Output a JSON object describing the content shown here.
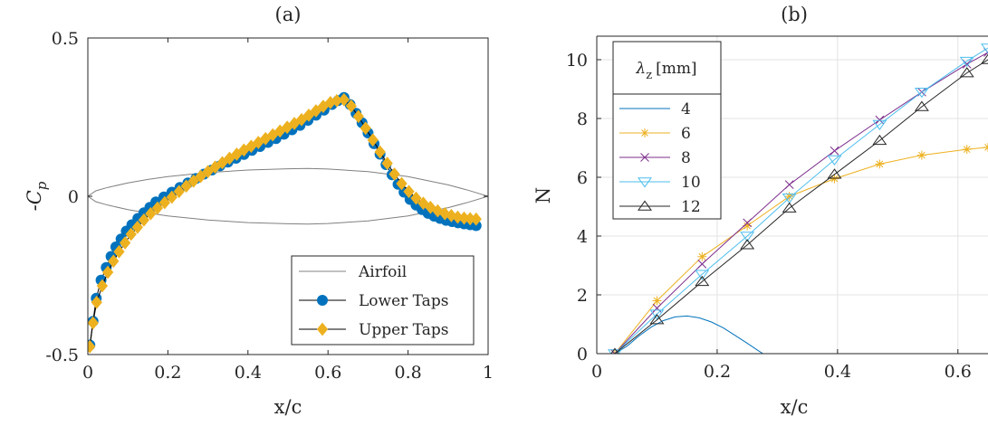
{
  "chart_data": [
    {
      "id": "a",
      "type": "line",
      "title": "(a)",
      "xlabel": "x/c",
      "ylabel": "-C",
      "ylabel_sub": "p",
      "xlim": [
        0,
        1
      ],
      "ylim": [
        -0.5,
        0.5
      ],
      "xticks": [
        "0",
        "0.2",
        "0.4",
        "0.6",
        "0.8",
        "1"
      ],
      "yticks": [
        "-0.5",
        "0",
        "0.5"
      ],
      "grid": false,
      "legend_position": "bottom-right",
      "series": [
        {
          "name": "Airfoil",
          "color": "#808080",
          "marker": "none",
          "x": [
            0.0,
            0.02,
            0.05,
            0.1,
            0.15,
            0.2,
            0.3,
            0.4,
            0.5,
            0.55,
            0.6,
            0.7,
            0.8,
            0.9,
            0.95,
            1.0
          ],
          "y": [
            0.0,
            0.017,
            0.028,
            0.042,
            0.053,
            0.062,
            0.075,
            0.083,
            0.087,
            0.088,
            0.086,
            0.078,
            0.062,
            0.036,
            0.019,
            0.0
          ]
        },
        {
          "name": "",
          "color": "#808080",
          "marker": "none",
          "x": [
            0.0,
            0.02,
            0.05,
            0.1,
            0.15,
            0.2,
            0.3,
            0.4,
            0.5,
            0.55,
            0.6,
            0.7,
            0.8,
            0.9,
            0.95,
            1.0
          ],
          "y": [
            0.0,
            -0.017,
            -0.028,
            -0.042,
            -0.053,
            -0.062,
            -0.075,
            -0.083,
            -0.087,
            -0.088,
            -0.086,
            -0.078,
            -0.062,
            -0.036,
            -0.019,
            0.0
          ]
        },
        {
          "name": "Lower Taps",
          "color": "#0072BD",
          "line_color": "#000000",
          "marker": "circle",
          "x": [
            0.005,
            0.013,
            0.021,
            0.033,
            0.046,
            0.058,
            0.07,
            0.083,
            0.096,
            0.11,
            0.125,
            0.14,
            0.155,
            0.17,
            0.19,
            0.21,
            0.23,
            0.25,
            0.27,
            0.29,
            0.31,
            0.33,
            0.35,
            0.37,
            0.39,
            0.41,
            0.43,
            0.45,
            0.47,
            0.49,
            0.51,
            0.53,
            0.55,
            0.57,
            0.59,
            0.61,
            0.625,
            0.64,
            0.655,
            0.67,
            0.685,
            0.7,
            0.715,
            0.73,
            0.745,
            0.76,
            0.775,
            0.79,
            0.805,
            0.82,
            0.835,
            0.85,
            0.865,
            0.88,
            0.895,
            0.91,
            0.925,
            0.94,
            0.955,
            0.97
          ],
          "y": [
            -0.47,
            -0.395,
            -0.322,
            -0.265,
            -0.225,
            -0.19,
            -0.16,
            -0.135,
            -0.11,
            -0.09,
            -0.07,
            -0.052,
            -0.035,
            -0.018,
            -0.002,
            0.013,
            0.028,
            0.042,
            0.056,
            0.07,
            0.083,
            0.096,
            0.108,
            0.12,
            0.132,
            0.145,
            0.157,
            0.17,
            0.182,
            0.196,
            0.21,
            0.224,
            0.24,
            0.256,
            0.272,
            0.29,
            0.302,
            0.312,
            0.29,
            0.262,
            0.232,
            0.2,
            0.166,
            0.133,
            0.1,
            0.068,
            0.038,
            0.013,
            -0.01,
            -0.028,
            -0.042,
            -0.054,
            -0.063,
            -0.07,
            -0.076,
            -0.08,
            -0.084,
            -0.087,
            -0.09,
            -0.093
          ]
        },
        {
          "name": "Upper Taps",
          "color": "#EDB120",
          "line_color": "#000000",
          "marker": "diamond",
          "x": [
            0.005,
            0.013,
            0.022,
            0.036,
            0.05,
            0.064,
            0.078,
            0.093,
            0.108,
            0.124,
            0.14,
            0.157,
            0.174,
            0.192,
            0.21,
            0.228,
            0.246,
            0.264,
            0.282,
            0.3,
            0.318,
            0.336,
            0.354,
            0.372,
            0.39,
            0.408,
            0.426,
            0.444,
            0.462,
            0.48,
            0.498,
            0.516,
            0.534,
            0.552,
            0.57,
            0.588,
            0.606,
            0.622,
            0.64,
            0.658,
            0.676,
            0.694,
            0.712,
            0.73,
            0.748,
            0.766,
            0.784,
            0.802,
            0.82,
            0.838,
            0.856,
            0.874,
            0.892,
            0.908,
            0.924,
            0.94,
            0.955,
            0.97
          ],
          "y": [
            -0.475,
            -0.4,
            -0.335,
            -0.283,
            -0.24,
            -0.205,
            -0.175,
            -0.147,
            -0.12,
            -0.098,
            -0.075,
            -0.055,
            -0.037,
            -0.02,
            -0.003,
            0.015,
            0.032,
            0.048,
            0.063,
            0.078,
            0.092,
            0.106,
            0.12,
            0.133,
            0.146,
            0.158,
            0.17,
            0.182,
            0.194,
            0.206,
            0.218,
            0.23,
            0.242,
            0.256,
            0.27,
            0.284,
            0.296,
            0.302,
            0.305,
            0.285,
            0.252,
            0.215,
            0.178,
            0.14,
            0.104,
            0.07,
            0.04,
            0.015,
            -0.006,
            -0.022,
            -0.035,
            -0.046,
            -0.055,
            -0.061,
            -0.066,
            -0.069,
            -0.071,
            -0.072
          ]
        }
      ]
    },
    {
      "id": "b",
      "type": "line",
      "title": "(b)",
      "xlabel": "x/c",
      "ylabel": "N",
      "xlim": [
        0,
        0.65
      ],
      "ylim": [
        0,
        10.8
      ],
      "xticks": [
        "0",
        "0.2",
        "0.4",
        "0.6"
      ],
      "yticks": [
        "0",
        "2",
        "4",
        "6",
        "8",
        "10"
      ],
      "grid": true,
      "legend_title": "λ",
      "legend_title_sub": "z",
      "legend_title_unit": "[mm]",
      "legend_position": "top-left",
      "series": [
        {
          "name": "4",
          "color": "#0072BD",
          "marker": "none",
          "x": [
            0.03,
            0.05,
            0.07,
            0.09,
            0.11,
            0.13,
            0.15,
            0.17,
            0.19,
            0.21,
            0.23,
            0.25,
            0.27,
            0.28
          ],
          "y": [
            0.0,
            0.25,
            0.6,
            0.9,
            1.12,
            1.25,
            1.28,
            1.22,
            1.08,
            0.88,
            0.62,
            0.35,
            0.08,
            -0.05
          ]
        },
        {
          "name": "6",
          "color": "#EDB120",
          "marker": "asterisk",
          "x": [
            0.03,
            0.1,
            0.175,
            0.25,
            0.32,
            0.395,
            0.47,
            0.54,
            0.615,
            0.65
          ],
          "y": [
            0.0,
            1.8,
            3.3,
            4.35,
            5.35,
            5.95,
            6.45,
            6.75,
            6.95,
            7.02
          ]
        },
        {
          "name": "8",
          "color": "#7E2F8E",
          "marker": "x",
          "x": [
            0.03,
            0.1,
            0.175,
            0.25,
            0.32,
            0.395,
            0.47,
            0.54,
            0.615,
            0.65
          ],
          "y": [
            0.0,
            1.55,
            3.05,
            4.45,
            5.75,
            6.9,
            7.95,
            8.9,
            9.85,
            10.25
          ]
        },
        {
          "name": "10",
          "color": "#4DBEEE",
          "marker": "triangle-down",
          "x": [
            0.03,
            0.1,
            0.175,
            0.25,
            0.32,
            0.395,
            0.47,
            0.54,
            0.615,
            0.65
          ],
          "y": [
            0.0,
            1.35,
            2.7,
            4.0,
            5.3,
            6.6,
            7.8,
            8.9,
            9.95,
            10.4
          ]
        },
        {
          "name": "12",
          "color": "#262626",
          "marker": "triangle-up",
          "x": [
            0.03,
            0.1,
            0.175,
            0.25,
            0.32,
            0.395,
            0.47,
            0.54,
            0.615,
            0.65
          ],
          "y": [
            0.0,
            1.15,
            2.45,
            3.7,
            4.95,
            6.1,
            7.25,
            8.4,
            9.55,
            10.0
          ]
        }
      ]
    }
  ]
}
